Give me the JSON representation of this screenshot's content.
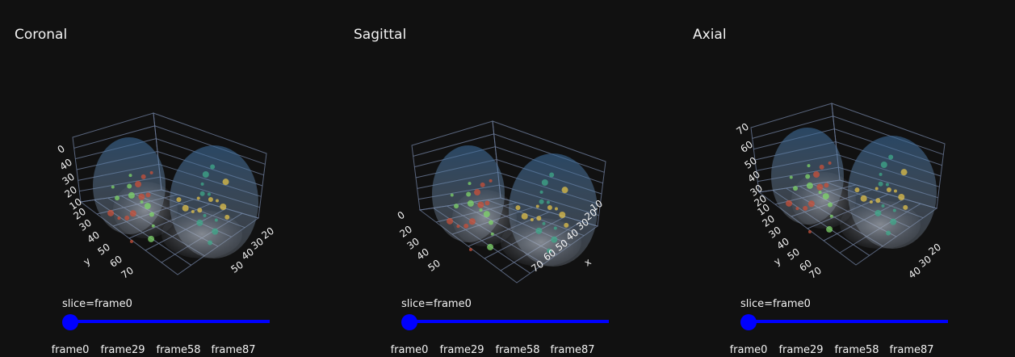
{
  "panels": [
    {
      "title": "Coronal",
      "axis_ticks": [
        "0",
        "40",
        "30",
        "20",
        "10",
        "20",
        "30",
        "40",
        "50",
        "60",
        "70",
        "y",
        "20",
        "30",
        "40",
        "50"
      ],
      "slider": {
        "label": "slice=frame0",
        "ticks": [
          "frame0",
          "frame29",
          "frame58",
          "frame87"
        ]
      }
    },
    {
      "title": "Sagittal",
      "axis_ticks": [
        "0",
        "20",
        "30",
        "40",
        "50",
        "10",
        "20",
        "30",
        "40",
        "50",
        "60",
        "70",
        "x"
      ],
      "slider": {
        "label": "slice=frame0",
        "ticks": [
          "frame0",
          "frame29",
          "frame58",
          "frame87"
        ]
      }
    },
    {
      "title": "Axial",
      "axis_ticks": [
        "70",
        "60",
        "50",
        "40",
        "30",
        "20",
        "10",
        "20",
        "30",
        "40",
        "50",
        "60",
        "70",
        "y",
        "20",
        "30",
        "40"
      ],
      "slider": {
        "label": "slice=frame0",
        "ticks": [
          "frame0",
          "frame29",
          "frame58",
          "frame87"
        ]
      }
    }
  ]
}
